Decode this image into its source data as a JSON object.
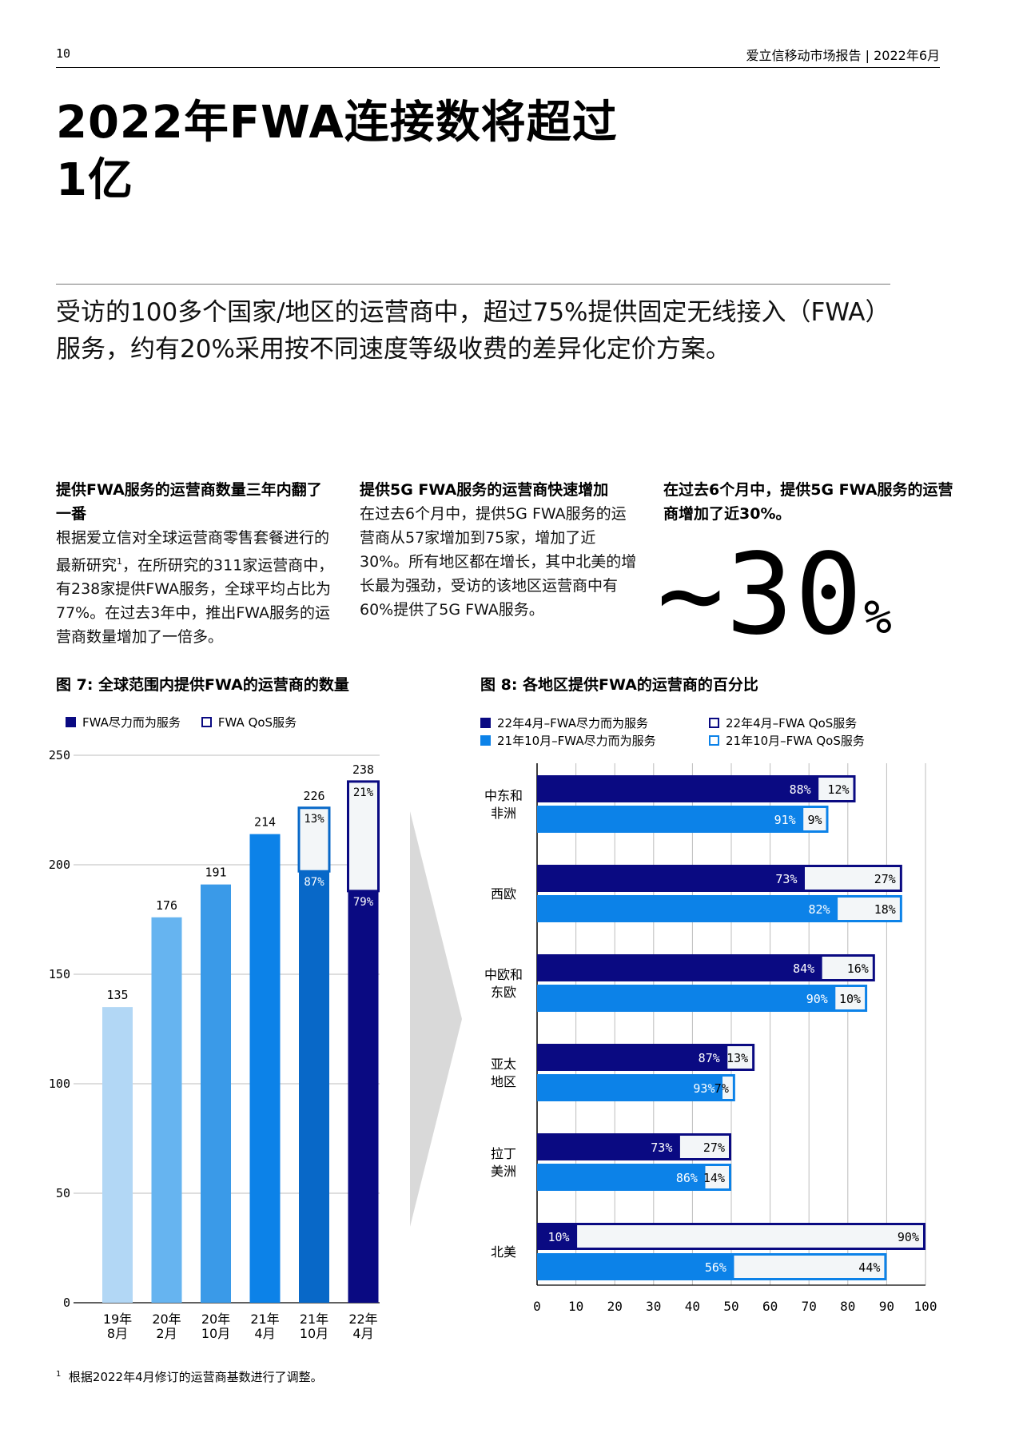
{
  "header": {
    "page_number": "10",
    "publication": "爱立信移动市场报告 | 2022年6月"
  },
  "title_lines": [
    "2022年FWA连接数将超过",
    "1亿"
  ],
  "intro": "受访的100多个国家/地区的运营商中，超过75%提供固定无线接入（FWA）服务，约有20%采用按不同速度等级收费的差异化定价方案。",
  "columns": [
    {
      "heading": "提供FWA服务的运营商数量三年内翻了一番",
      "body_before": "根据爱立信对全球运营商零售套餐进行的最新研究",
      "footnote_mark": "1",
      "body_after": "，在所研究的311家运营商中，有238家提供FWA服务，全球平均占比为77%。在过去3年中，推出FWA服务的运营商数量增加了一倍多。"
    },
    {
      "heading": "提供5G FWA服务的运营商快速增加",
      "body": "在过去6个月中，提供5G FWA服务的运营商从57家增加到75家，增加了近30%。所有地区都在增长，其中北美的增长最为强劲，受访的该地区运营商中有60%提供了5G FWA服务。"
    },
    {
      "heading": "在过去6个月中，提供5G FWA服务的运营商增加了近30%。",
      "stat_value": "~30",
      "stat_unit": "%"
    }
  ],
  "figure7": {
    "title": "图 7: 全球范围内提供FWA的运营商的数量",
    "legend": [
      "FWA尽力而为服务",
      "FWA QoS服务"
    ]
  },
  "figure8": {
    "title": "图 8: 各地区提供FWA的运营商的百分比",
    "legend": [
      "22年4月–FWA尽力而为服务",
      "22年4月–FWA QoS服务",
      "21年10月–FWA尽力而为服务",
      "21年10月–FWA QoS服务"
    ]
  },
  "colors": {
    "dark_navy": "#0a0a82",
    "bright_blue": "#0c82e8",
    "qos_fill": "#f3f6f8",
    "fig7_bars": [
      "#b2d7f5",
      "#66b4f0",
      "#3a9ae8",
      "#0c82e8",
      "#0868c8",
      "#0a0a82"
    ]
  },
  "chart_data": [
    {
      "type": "bar",
      "title": "图 7: 全球范围内提供FWA的运营商的数量",
      "categories": [
        [
          "19年",
          "8月"
        ],
        [
          "20年",
          "2月"
        ],
        [
          "20年",
          "10月"
        ],
        [
          "21年",
          "4月"
        ],
        [
          "21年",
          "10月"
        ],
        [
          "22年",
          "4月"
        ]
      ],
      "totals": [
        135,
        176,
        191,
        214,
        226,
        238
      ],
      "total_labels": [
        "135",
        "176",
        "191",
        "214",
        "226",
        "238"
      ],
      "series": [
        {
          "name": "FWA尽力而为服务",
          "values": [
            135,
            176,
            191,
            214,
            197,
            188
          ],
          "labels": [
            "",
            "",
            "",
            "",
            "87%",
            "79%"
          ]
        },
        {
          "name": "FWA QoS服务",
          "values": [
            0,
            0,
            0,
            0,
            29,
            50
          ],
          "labels": [
            "",
            "",
            "",
            "",
            "13%",
            "21%"
          ]
        }
      ],
      "ylim": [
        0,
        250
      ],
      "yticks": [
        "0",
        "50",
        "100",
        "150",
        "200",
        "250"
      ],
      "grid": true,
      "legend": "top-left"
    },
    {
      "type": "bar",
      "orientation": "horizontal",
      "stacked": true,
      "title": "图 8: 各地区提供FWA的运营商的百分比",
      "categories": [
        [
          "中东和",
          "非洲"
        ],
        [
          "西欧"
        ],
        [
          "中欧和",
          "东欧"
        ],
        [
          "亚太",
          "地区"
        ],
        [
          "拉丁",
          "美洲"
        ],
        [
          "北美"
        ]
      ],
      "groups": [
        {
          "name": "22年4月",
          "total": [
            82,
            94,
            87,
            56,
            50,
            100
          ],
          "best_effort_share": [
            88,
            73,
            84,
            87,
            73,
            10
          ],
          "qos_share": [
            12,
            27,
            16,
            13,
            27,
            90
          ],
          "labels_be": [
            "88%",
            "73%",
            "84%",
            "87%",
            "73%",
            "10%"
          ],
          "labels_qos": [
            "12%",
            "27%",
            "16%",
            "13%",
            "27%",
            "90%"
          ]
        },
        {
          "name": "21年10月",
          "total": [
            75,
            94,
            85,
            51,
            50,
            90
          ],
          "best_effort_share": [
            91,
            82,
            90,
            93,
            86,
            56
          ],
          "qos_share": [
            9,
            18,
            10,
            7,
            14,
            44
          ],
          "labels_be": [
            "91%",
            "82%",
            "90%",
            "93%",
            "86%",
            "56%"
          ],
          "labels_qos": [
            "9%",
            "18%",
            "10%",
            "7%",
            "14%",
            "44%"
          ]
        }
      ],
      "xlim": [
        0,
        100
      ],
      "xticks": [
        "0",
        "10",
        "20",
        "30",
        "40",
        "50",
        "60",
        "70",
        "80",
        "90",
        "100"
      ],
      "grid": true,
      "legend": "top"
    }
  ],
  "footnote": {
    "mark": "1",
    "text": "根据2022年4月修订的运营商基数进行了调整。"
  }
}
